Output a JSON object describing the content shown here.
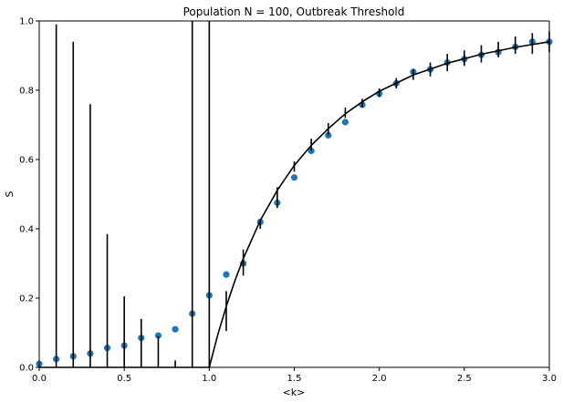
{
  "chart_data": {
    "type": "scatter",
    "title": "Population N = 100, Outbreak Threshold",
    "xlabel": "<k>",
    "ylabel": "S",
    "xlim": [
      0,
      3.0
    ],
    "ylim": [
      0,
      1.0
    ],
    "grid": false,
    "x_ticks": [
      {
        "value": 0.0,
        "label": "0.0"
      },
      {
        "value": 0.5,
        "label": "0.5"
      },
      {
        "value": 1.0,
        "label": "1.0"
      },
      {
        "value": 1.5,
        "label": "1.5"
      },
      {
        "value": 2.0,
        "label": "2.0"
      },
      {
        "value": 2.5,
        "label": "2.5"
      },
      {
        "value": 3.0,
        "label": "3.0"
      }
    ],
    "y_ticks": [
      {
        "value": 0.0,
        "label": "0.0"
      },
      {
        "value": 0.2,
        "label": "0.2"
      },
      {
        "value": 0.4,
        "label": "0.4"
      },
      {
        "value": 0.6,
        "label": "0.6"
      },
      {
        "value": 0.8,
        "label": "0.8"
      },
      {
        "value": 1.0,
        "label": "1.0"
      }
    ],
    "series": [
      {
        "kind": "points",
        "color": "#1f77b4",
        "x": [
          0.0,
          0.1,
          0.2,
          0.3,
          0.4,
          0.5,
          0.6,
          0.7,
          0.8,
          0.9,
          1.0,
          1.1,
          1.2,
          1.3,
          1.4,
          1.5,
          1.6,
          1.7,
          1.8,
          1.9,
          2.0,
          2.1,
          2.2,
          2.3,
          2.4,
          2.5,
          2.6,
          2.7,
          2.8,
          2.9,
          3.0
        ],
        "y": [
          0.01,
          0.024,
          0.032,
          0.04,
          0.056,
          0.063,
          0.085,
          0.092,
          0.11,
          0.155,
          0.208,
          0.268,
          0.3,
          0.42,
          0.475,
          0.548,
          0.625,
          0.67,
          0.708,
          0.758,
          0.79,
          0.82,
          0.853,
          0.86,
          0.88,
          0.89,
          0.902,
          0.91,
          0.925,
          0.94,
          0.94
        ]
      },
      {
        "kind": "errorbars",
        "color": "#000000",
        "x": [
          0.0,
          0.1,
          0.2,
          0.3,
          0.4,
          0.5,
          0.6,
          0.7,
          0.8,
          0.9,
          1.0,
          1.1,
          1.2,
          1.3,
          1.4,
          1.5,
          1.6,
          1.7,
          1.8,
          1.9,
          2.0,
          2.1,
          2.2,
          2.3,
          2.4,
          2.5,
          2.6,
          2.7,
          2.8,
          2.9,
          3.0
        ],
        "low": [
          0.0,
          0.0,
          0.0,
          0.0,
          0.0,
          0.0,
          0.0,
          0.0,
          0.0,
          0.0,
          0.0,
          0.105,
          0.265,
          0.4,
          0.46,
          0.565,
          0.625,
          0.67,
          0.72,
          0.75,
          0.78,
          0.805,
          0.83,
          0.84,
          0.855,
          0.87,
          0.88,
          0.895,
          0.905,
          0.905,
          0.91
        ],
        "high": [
          0.0,
          0.99,
          0.94,
          0.76,
          0.385,
          0.205,
          0.14,
          0.09,
          0.02,
          1.0,
          1.0,
          0.22,
          0.34,
          0.425,
          0.52,
          0.595,
          0.66,
          0.705,
          0.75,
          0.775,
          0.805,
          0.835,
          0.86,
          0.88,
          0.905,
          0.915,
          0.93,
          0.94,
          0.955,
          0.965,
          0.97
        ]
      },
      {
        "kind": "line",
        "color": "#000000",
        "x": [
          0.0,
          1.0,
          1.05,
          1.1,
          1.15,
          1.2,
          1.3,
          1.4,
          1.5,
          1.6,
          1.7,
          1.8,
          1.9,
          2.0,
          2.2,
          2.4,
          2.6,
          2.8,
          3.0
        ],
        "y": [
          0.0,
          0.0,
          0.094,
          0.176,
          0.249,
          0.314,
          0.424,
          0.511,
          0.583,
          0.641,
          0.689,
          0.732,
          0.767,
          0.797,
          0.844,
          0.878,
          0.904,
          0.924,
          0.94
        ]
      }
    ]
  }
}
